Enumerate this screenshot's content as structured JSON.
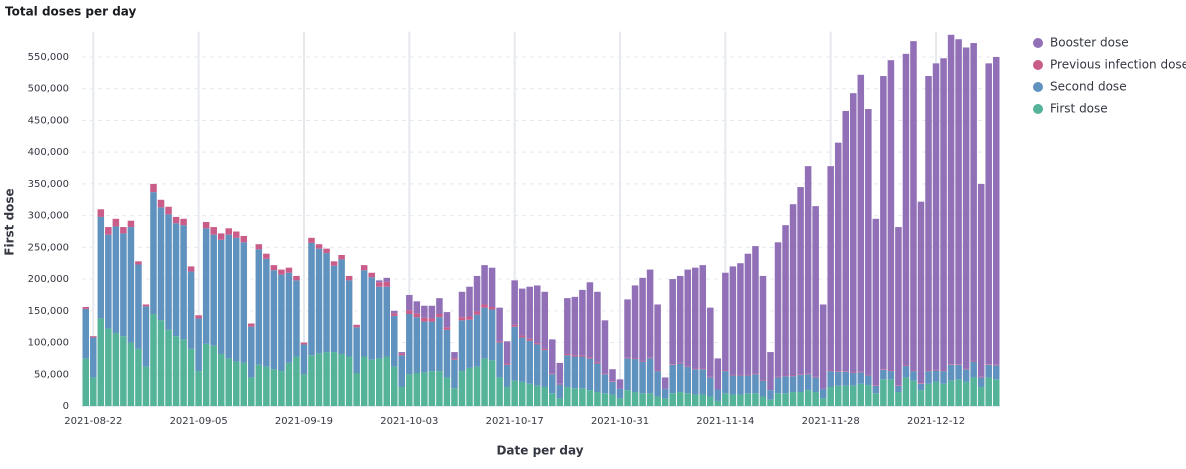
{
  "chart_data": {
    "type": "stacked-bar",
    "title": "Total doses per day",
    "x_label": "Date per day",
    "y_label": "First dose",
    "categories": [
      "2021-08-21",
      "2021-08-22",
      "2021-08-23",
      "2021-08-24",
      "2021-08-25",
      "2021-08-26",
      "2021-08-27",
      "2021-08-28",
      "2021-08-29",
      "2021-08-30",
      "2021-08-31",
      "2021-09-01",
      "2021-09-02",
      "2021-09-03",
      "2021-09-04",
      "2021-09-05",
      "2021-09-06",
      "2021-09-07",
      "2021-09-08",
      "2021-09-09",
      "2021-09-10",
      "2021-09-11",
      "2021-09-12",
      "2021-09-13",
      "2021-09-14",
      "2021-09-15",
      "2021-09-16",
      "2021-09-17",
      "2021-09-18",
      "2021-09-19",
      "2021-09-20",
      "2021-09-21",
      "2021-09-22",
      "2021-09-23",
      "2021-09-24",
      "2021-09-25",
      "2021-09-26",
      "2021-09-27",
      "2021-09-28",
      "2021-09-29",
      "2021-09-30",
      "2021-10-01",
      "2021-10-02",
      "2021-10-03",
      "2021-10-04",
      "2021-10-05",
      "2021-10-06",
      "2021-10-07",
      "2021-10-08",
      "2021-10-09",
      "2021-10-10",
      "2021-10-11",
      "2021-10-12",
      "2021-10-13",
      "2021-10-14",
      "2021-10-15",
      "2021-10-16",
      "2021-10-17",
      "2021-10-18",
      "2021-10-19",
      "2021-10-20",
      "2021-10-21",
      "2021-10-22",
      "2021-10-23",
      "2021-10-24",
      "2021-10-25",
      "2021-10-26",
      "2021-10-27",
      "2021-10-28",
      "2021-10-29",
      "2021-10-30",
      "2021-10-31",
      "2021-11-01",
      "2021-11-02",
      "2021-11-03",
      "2021-11-04",
      "2021-11-05",
      "2021-11-06",
      "2021-11-07",
      "2021-11-08",
      "2021-11-09",
      "2021-11-10",
      "2021-11-11",
      "2021-11-12",
      "2021-11-13",
      "2021-11-14",
      "2021-11-15",
      "2021-11-16",
      "2021-11-17",
      "2021-11-18",
      "2021-11-19",
      "2021-11-20",
      "2021-11-21",
      "2021-11-22",
      "2021-11-23",
      "2021-11-24",
      "2021-11-25",
      "2021-11-26",
      "2021-11-27",
      "2021-11-28",
      "2021-11-29",
      "2021-11-30",
      "2021-12-01",
      "2021-12-02",
      "2021-12-03",
      "2021-12-04",
      "2021-12-05",
      "2021-12-06",
      "2021-12-07",
      "2021-12-08",
      "2021-12-09",
      "2021-12-10",
      "2021-12-11",
      "2021-12-12",
      "2021-12-13",
      "2021-12-14",
      "2021-12-15",
      "2021-12-16",
      "2021-12-17",
      "2021-12-18",
      "2021-12-19",
      "2021-12-20"
    ],
    "xticks": [
      "2021-08-22",
      "2021-09-05",
      "2021-09-19",
      "2021-10-03",
      "2021-10-17",
      "2021-10-31",
      "2021-11-14",
      "2021-11-28",
      "2021-12-12"
    ],
    "ylim": [
      0,
      590000
    ],
    "yticks": [
      0,
      {
        "value": 50000,
        "label": "50,000"
      },
      {
        "value": 100000,
        "label": "100,000"
      },
      {
        "value": 150000,
        "label": "150,000"
      },
      {
        "value": 200000,
        "label": "200,000"
      },
      {
        "value": 250000,
        "label": "250,000"
      },
      {
        "value": 300000,
        "label": "300,000"
      },
      {
        "value": 350000,
        "label": "350,000"
      },
      {
        "value": 400000,
        "label": "400,000"
      },
      {
        "value": 450000,
        "label": "450,000"
      },
      {
        "value": 500000,
        "label": "500,000"
      },
      {
        "value": 550000,
        "label": "550,000"
      }
    ],
    "grid": true,
    "legend": "right",
    "series": [
      {
        "name": "Booster dose",
        "color": "#9170b8",
        "values": [
          0,
          0,
          0,
          0,
          0,
          0,
          0,
          0,
          0,
          0,
          0,
          0,
          0,
          0,
          0,
          0,
          0,
          0,
          0,
          0,
          0,
          0,
          0,
          0,
          0,
          0,
          0,
          0,
          0,
          0,
          0,
          0,
          0,
          0,
          0,
          0,
          0,
          0,
          0,
          3000,
          6000,
          4000,
          2000,
          24000,
          19000,
          19000,
          20000,
          25000,
          24000,
          10000,
          40000,
          47000,
          56000,
          62000,
          62000,
          53000,
          35000,
          70000,
          74000,
          82000,
          91000,
          90000,
          54000,
          33000,
          88000,
          92000,
          103000,
          118000,
          111000,
          84000,
          19000,
          15000,
          92000,
          115000,
          131000,
          139000,
          104000,
          18000,
          134000,
          137000,
          152000,
          159000,
          163000,
          109000,
          49000,
          154000,
          171000,
          176000,
          191000,
          201000,
          164000,
          60000,
          212000,
          237000,
          270000,
          295000,
          327000,
          269000,
          133000,
          322000,
          360000,
          410000,
          440000,
          468000,
          419000,
          262000,
          462000,
          489000,
          249000,
          491000,
          519000,
          286000,
          464000,
          483000,
          492000,
          519000,
          512000,
          506000,
          501000,
          304000,
          474000,
          485000
        ]
      },
      {
        "name": "Previous infection dose",
        "color": "#ca5c89",
        "values": [
          3000,
          2000,
          12000,
          12000,
          12000,
          10000,
          10000,
          5000,
          3000,
          13000,
          12000,
          12000,
          10000,
          10000,
          8000,
          5000,
          10000,
          12000,
          10000,
          10000,
          10000,
          10000,
          5000,
          8000,
          8000,
          8000,
          8000,
          8000,
          7000,
          3000,
          8000,
          7000,
          7000,
          7000,
          7000,
          7000,
          4000,
          8000,
          7000,
          7000,
          8000,
          4000,
          3000,
          6000,
          6000,
          6000,
          5000,
          5000,
          4000,
          2000,
          5000,
          5000,
          5000,
          5000,
          4000,
          2000,
          2000,
          3000,
          3000,
          3000,
          2000,
          2000,
          1000,
          1000,
          2000,
          2000,
          2000,
          2000,
          2000,
          1000,
          1000,
          0,
          1000,
          1000,
          1000,
          1000,
          1000,
          0,
          1000,
          1000,
          1000,
          1000,
          1000,
          1000,
          0,
          1000,
          1000,
          1000,
          1000,
          1000,
          1000,
          0,
          1000,
          1000,
          1000,
          1000,
          1000,
          1000,
          0,
          1000,
          1000,
          1000,
          1000,
          1000,
          1000,
          1000,
          1000,
          1000,
          1000,
          1000,
          1000,
          1000,
          1000,
          1000,
          1000,
          1000,
          1000,
          1000,
          1000,
          1000,
          1000,
          1000
        ]
      },
      {
        "name": "Second dose",
        "color": "#6092c0",
        "values": [
          78000,
          63000,
          160000,
          148000,
          168000,
          162000,
          182000,
          133000,
          95000,
          192000,
          178000,
          182000,
          178000,
          180000,
          122000,
          83000,
          182000,
          175000,
          180000,
          195000,
          195000,
          190000,
          80000,
          182000,
          170000,
          156000,
          152000,
          142000,
          120000,
          47000,
          177000,
          165000,
          156000,
          136000,
          149000,
          120000,
          72000,
          136000,
          130000,
          113000,
          110000,
          80000,
          50000,
          95000,
          88000,
          80000,
          78000,
          85000,
          75000,
          45000,
          80000,
          76000,
          82000,
          80000,
          80000,
          55000,
          35000,
          85000,
          70000,
          68000,
          65000,
          58000,
          30000,
          22000,
          50000,
          50000,
          50000,
          50000,
          45000,
          30000,
          20000,
          15000,
          50000,
          52000,
          50000,
          55000,
          40000,
          15000,
          45000,
          45000,
          42000,
          40000,
          40000,
          30000,
          18000,
          35000,
          30000,
          30000,
          28000,
          30000,
          25000,
          15000,
          25000,
          27000,
          25000,
          27000,
          25000,
          23000,
          15000,
          25000,
          22000,
          22000,
          20000,
          18000,
          15000,
          12000,
          15000,
          13000,
          10000,
          18000,
          15000,
          10000,
          20000,
          18000,
          20000,
          25000,
          23000,
          20000,
          25000,
          15000,
          20000,
          22000
        ]
      },
      {
        "name": "First dose",
        "color": "#54b399",
        "values": [
          75000,
          45000,
          138000,
          122000,
          115000,
          110000,
          100000,
          90000,
          62000,
          145000,
          135000,
          120000,
          110000,
          105000,
          90000,
          55000,
          98000,
          95000,
          82000,
          75000,
          70000,
          68000,
          45000,
          65000,
          62000,
          58000,
          55000,
          68000,
          78000,
          50000,
          80000,
          83000,
          85000,
          85000,
          82000,
          78000,
          52000,
          78000,
          73000,
          75000,
          78000,
          62000,
          30000,
          50000,
          52000,
          53000,
          55000,
          55000,
          45000,
          28000,
          55000,
          60000,
          62000,
          75000,
          72000,
          45000,
          30000,
          40000,
          38000,
          35000,
          32000,
          30000,
          20000,
          12000,
          30000,
          28000,
          28000,
          25000,
          22000,
          20000,
          18000,
          12000,
          25000,
          22000,
          20000,
          20000,
          15000,
          12000,
          20000,
          22000,
          20000,
          18000,
          18000,
          15000,
          8000,
          20000,
          18000,
          18000,
          20000,
          20000,
          15000,
          10000,
          20000,
          20000,
          22000,
          22000,
          25000,
          22000,
          12000,
          30000,
          32000,
          32000,
          32000,
          35000,
          33000,
          20000,
          42000,
          42000,
          22000,
          45000,
          40000,
          25000,
          35000,
          38000,
          35000,
          40000,
          42000,
          38000,
          45000,
          30000,
          45000,
          42000
        ]
      }
    ]
  }
}
